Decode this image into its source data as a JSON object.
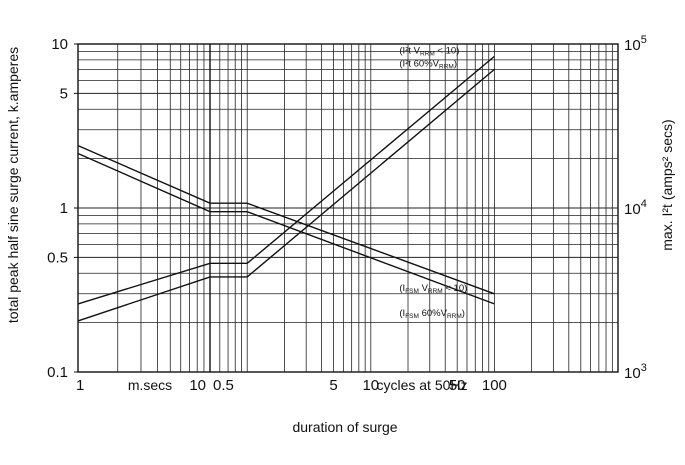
{
  "chart_data": {
    "type": "line",
    "scale": {
      "x": "log",
      "y_left": "log",
      "y_right": "log"
    },
    "grid": true,
    "xlabel": "duration of surge",
    "x_sublabels": [
      "m.secs",
      "cycles at 50Hz"
    ],
    "ylabel": "total peak half sine surge current, k.amperes",
    "ylabel_right": "max. I²t (amps² secs)",
    "x_segments": [
      {
        "unit": "ms",
        "range": [
          1,
          10
        ],
        "ticks": [
          {
            "value": 1,
            "label": "1"
          },
          {
            "value": 10,
            "label": "10"
          }
        ]
      },
      {
        "unit": "cycles at 50Hz",
        "range": [
          0.5,
          100
        ],
        "ticks": [
          {
            "value": 0.5,
            "label": "0.5"
          },
          {
            "value": 5,
            "label": "5"
          },
          {
            "value": 10,
            "label": "10"
          },
          {
            "value": 50,
            "label": "50"
          },
          {
            "value": 100,
            "label": "100"
          }
        ]
      }
    ],
    "ylim": [
      0.1,
      10
    ],
    "yticks": [
      {
        "value": 0.1,
        "label": "0.1"
      },
      {
        "value": 0.5,
        "label": "0.5"
      },
      {
        "value": 1,
        "label": "1"
      },
      {
        "value": 5,
        "label": "5"
      },
      {
        "value": 10,
        "label": "10"
      }
    ],
    "ylim_right": [
      1000,
      100000
    ],
    "yticks_right": [
      {
        "value": 1000,
        "base": "10",
        "exp": "3"
      },
      {
        "value": 10000,
        "base": "10",
        "exp": "4"
      },
      {
        "value": 100000,
        "base": "10",
        "exp": "5"
      }
    ],
    "series": [
      {
        "name": "I²t VRRM < 10",
        "axis": "right",
        "label_parts": [
          "(I²t  V",
          "RRM",
          "  < 10)"
        ],
        "points": [
          [
            1,
            2600
          ],
          [
            10,
            4600
          ],
          [
            1.0,
            4600
          ],
          [
            100,
            84000
          ]
        ]
      },
      {
        "name": "I²t 60%VRRM",
        "axis": "right",
        "label_parts": [
          "(I²t  60%V",
          "RRM",
          ")"
        ],
        "points": [
          [
            1,
            2050
          ],
          [
            10,
            3800
          ],
          [
            1.0,
            3800
          ],
          [
            100,
            70000
          ]
        ]
      },
      {
        "name": "IFSM VRRM < 10",
        "axis": "left",
        "label_parts": [
          "(I",
          "FSM",
          "  V",
          "RRM",
          "  < 10)"
        ],
        "points": [
          [
            1,
            2.4
          ],
          [
            10,
            1.07
          ],
          [
            1.0,
            1.07
          ],
          [
            100,
            0.3
          ]
        ]
      },
      {
        "name": "IFSM 60%VRRM",
        "axis": "left",
        "label_parts": [
          "(I",
          "FSM",
          "  60%V",
          "RRM",
          ")"
        ],
        "points": [
          [
            1,
            2.15
          ],
          [
            10,
            0.95
          ],
          [
            1.0,
            0.95
          ],
          [
            100,
            0.26
          ]
        ]
      }
    ]
  }
}
